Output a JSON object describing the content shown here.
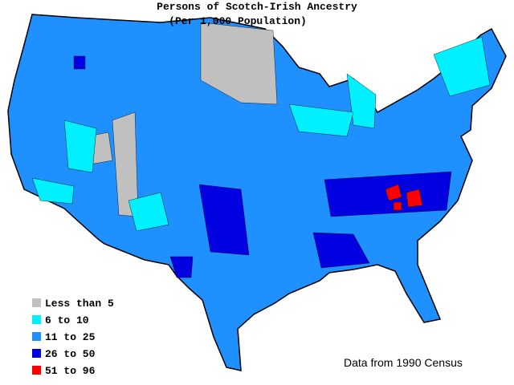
{
  "title": "Persons of Scotch-Irish Ancestry",
  "subtitle": "(Per 1,000 Population)",
  "legend": [
    {
      "label": "Less than 5",
      "color": "#c0c0c0"
    },
    {
      "label": "6 to 10",
      "color": "#00f0ff"
    },
    {
      "label": "11 to 25",
      "color": "#1e90ff"
    },
    {
      "label": "26 to 50",
      "color": "#0000e0"
    },
    {
      "label": "51 to 96",
      "color": "#ff0000"
    }
  ],
  "source": "Data from 1990 Census"
}
